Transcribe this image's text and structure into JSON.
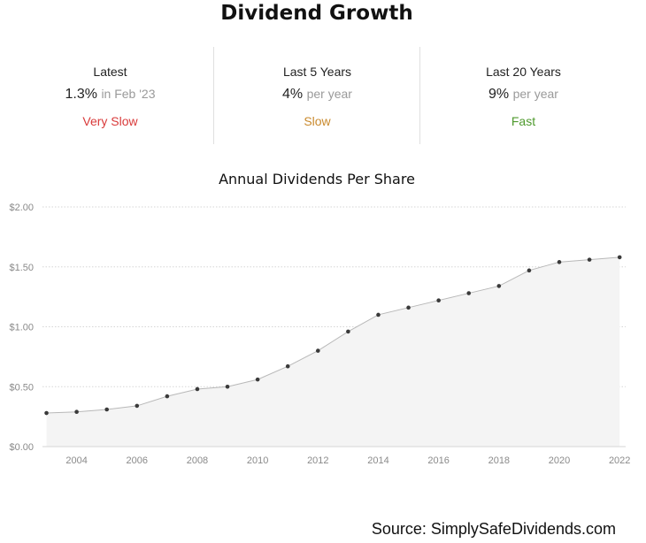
{
  "title": "Dividend Growth",
  "stats": [
    {
      "label": "Latest",
      "value": "1.3%",
      "unit": "in Feb '23",
      "rating": "Very Slow",
      "rating_color": "#d93a3a"
    },
    {
      "label": "Last 5 Years",
      "value": "4%",
      "unit": "per year",
      "rating": "Slow",
      "rating_color": "#c98a2e"
    },
    {
      "label": "Last 20 Years",
      "value": "9%",
      "unit": "per year",
      "rating": "Fast",
      "rating_color": "#4f9a2e"
    }
  ],
  "chart_data": {
    "type": "area",
    "title": "Annual Dividends Per Share",
    "xlabel": "",
    "ylabel": "",
    "x": [
      2003,
      2004,
      2005,
      2006,
      2007,
      2008,
      2009,
      2010,
      2011,
      2012,
      2013,
      2014,
      2015,
      2016,
      2017,
      2018,
      2019,
      2020,
      2021,
      2022
    ],
    "values": [
      0.28,
      0.29,
      0.31,
      0.34,
      0.42,
      0.48,
      0.5,
      0.56,
      0.67,
      0.8,
      0.96,
      1.1,
      1.16,
      1.22,
      1.28,
      1.34,
      1.47,
      1.54,
      1.56,
      1.58
    ],
    "xticks": [
      2004,
      2006,
      2008,
      2010,
      2012,
      2014,
      2016,
      2018,
      2020,
      2022
    ],
    "yticks": [
      0,
      0.5,
      1.0,
      1.5,
      2.0
    ],
    "ytick_labels": [
      "$0.00",
      "$0.50",
      "$1.00",
      "$1.50",
      "$2.00"
    ],
    "ylim": [
      0,
      2.0
    ],
    "xlim": [
      2002.75,
      2022.2
    ],
    "grid": true,
    "legend": "none",
    "colors": {
      "line": "#b8b8b8",
      "fill": "#f4f4f4",
      "point": "#3a3a3a",
      "grid": "#d6d6d6"
    }
  },
  "source": "Source: SimplySafeDividends.com"
}
